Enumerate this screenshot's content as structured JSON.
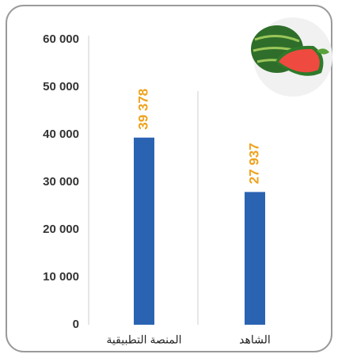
{
  "chart_data": {
    "type": "bar",
    "categories": [
      "المنصة التطبيقية",
      "الشاهد"
    ],
    "values": [
      39378,
      27937
    ],
    "value_labels": [
      "39 378",
      "27 937"
    ],
    "color": "#2b63b3",
    "value_label_color": "#eea21c",
    "ylim": [
      0,
      60000
    ],
    "yticks": [
      0,
      {
        "value": 10000,
        "label": "10 000"
      },
      {
        "value": 20000,
        "label": "20 000"
      },
      {
        "value": 30000,
        "label": "30 000"
      },
      {
        "value": 40000,
        "label": "40 000"
      },
      {
        "value": 50000,
        "label": "50 000"
      },
      {
        "value": 60000,
        "label": "60 000"
      }
    ]
  }
}
